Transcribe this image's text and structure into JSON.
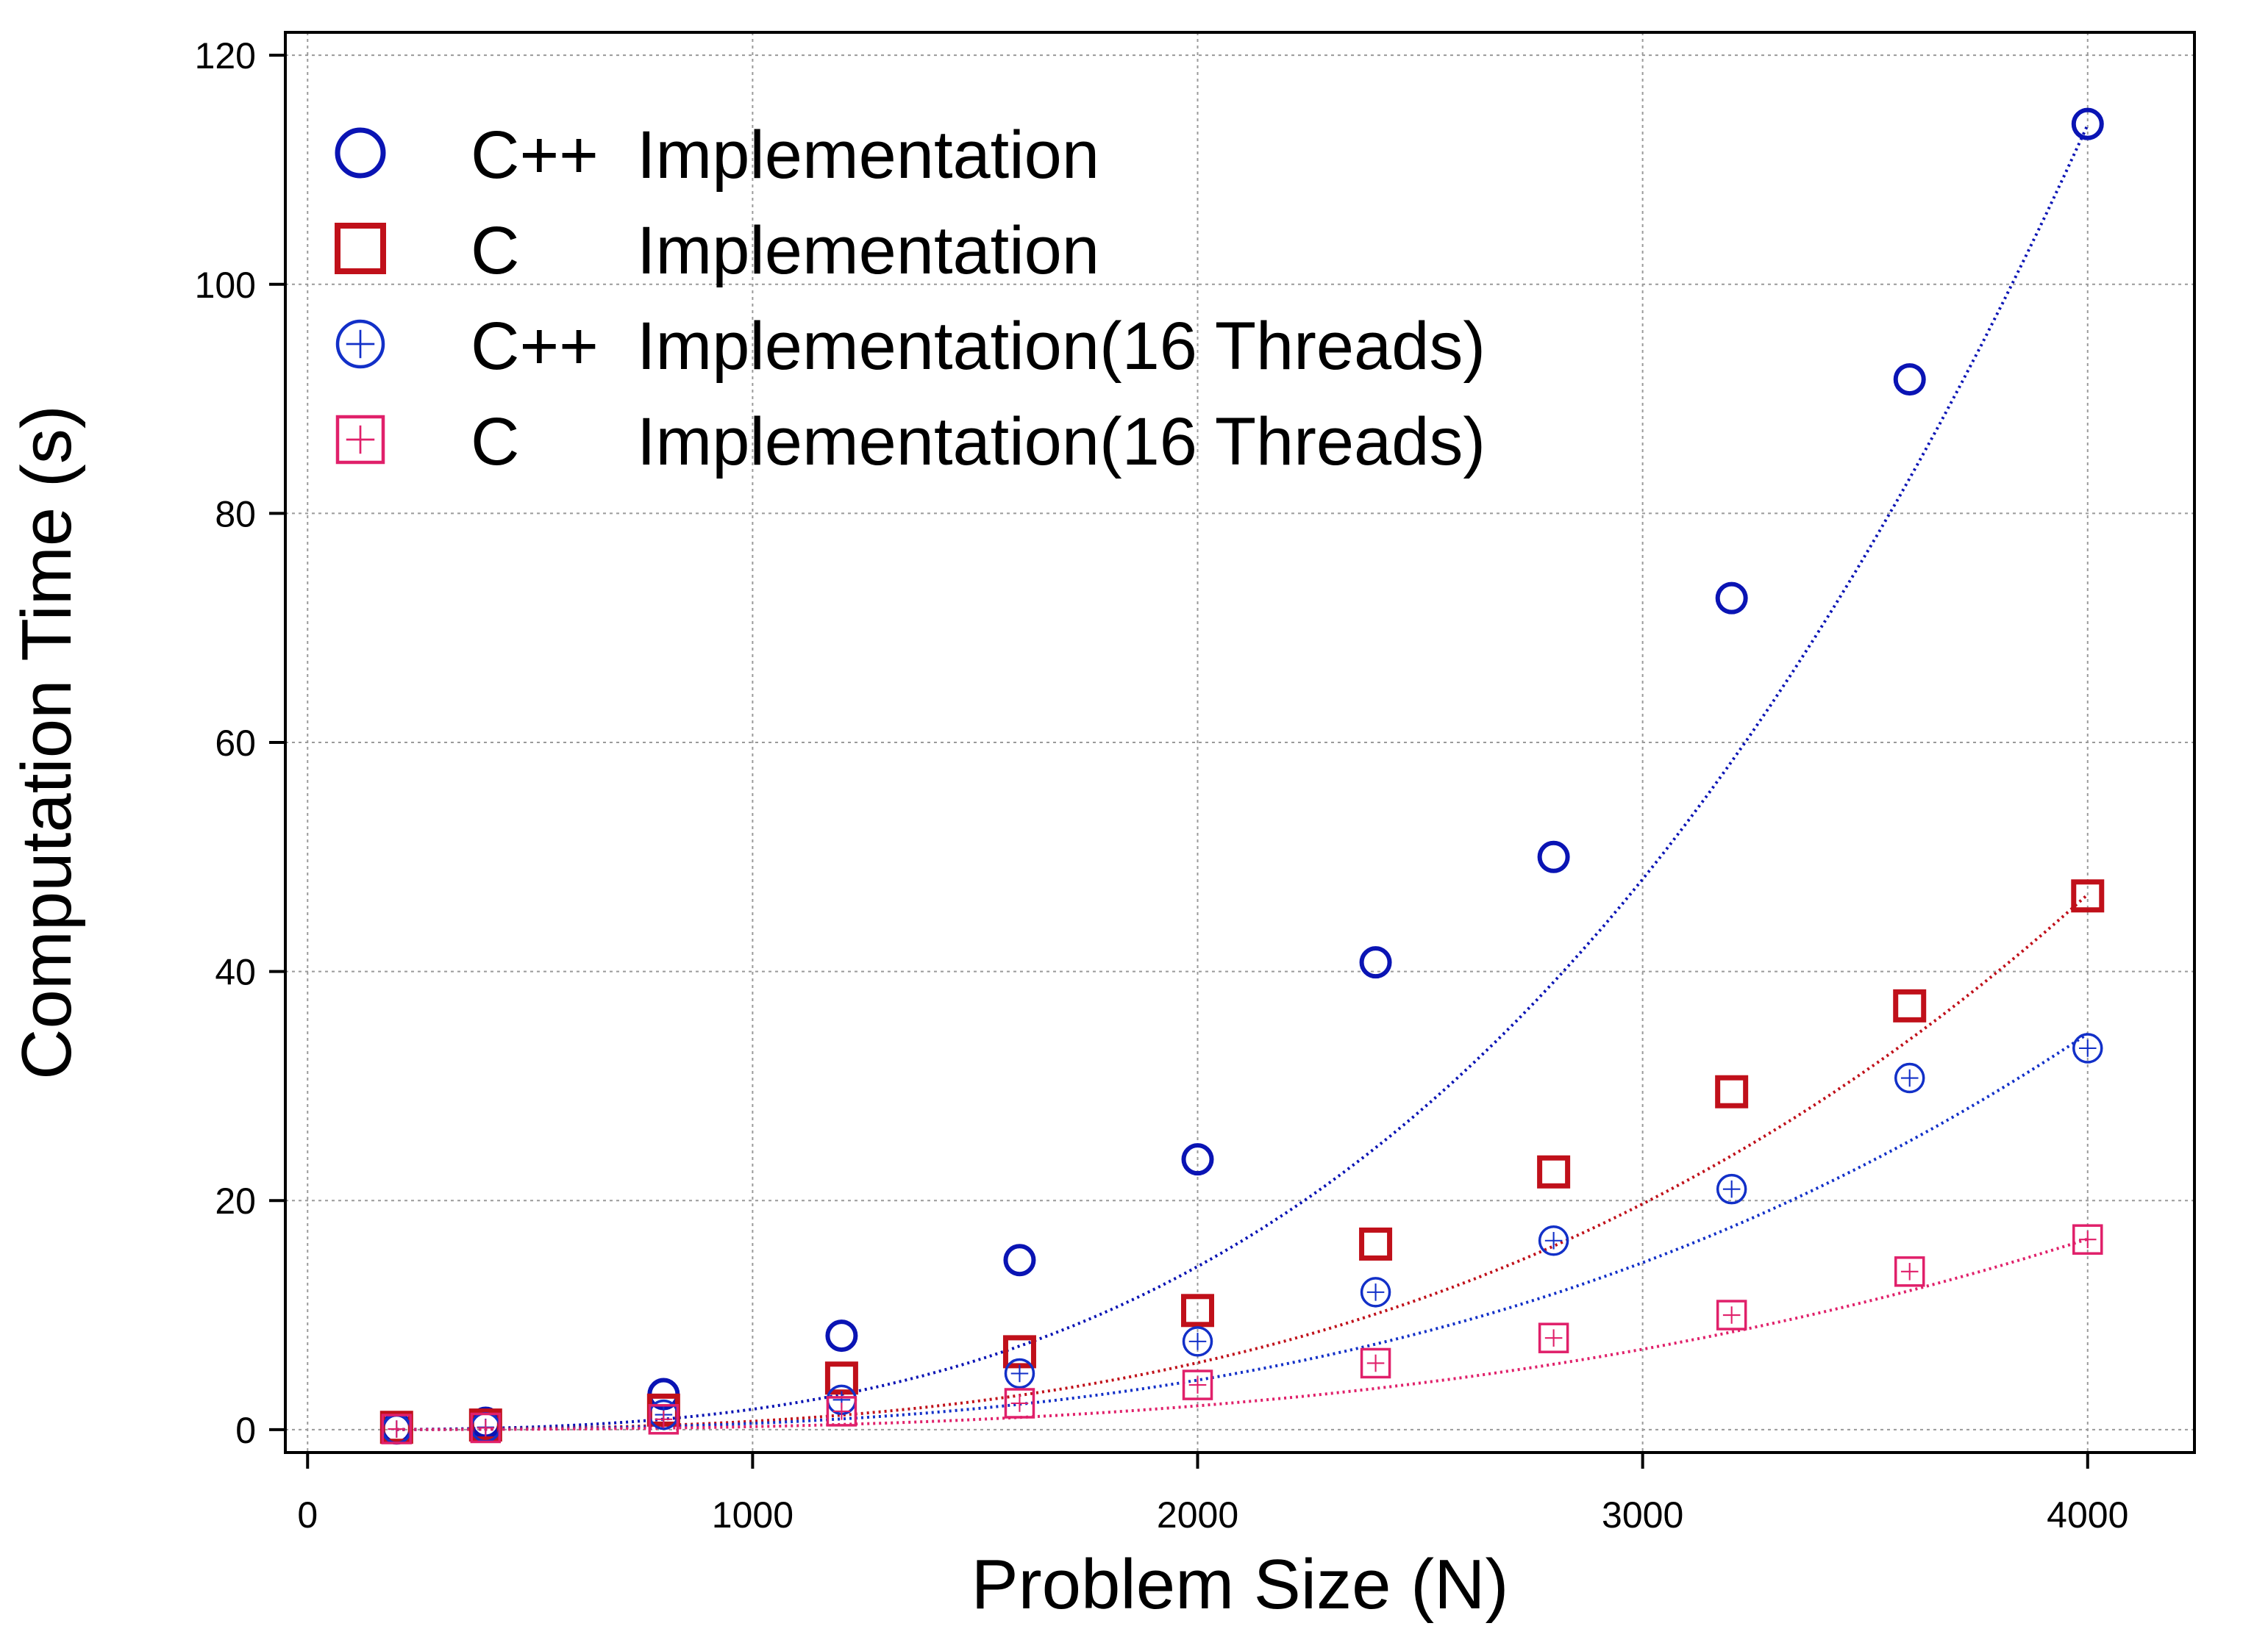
{
  "chart_data": {
    "type": "scatter",
    "title": "",
    "xlabel": "Problem Size (N)",
    "ylabel": "Computation Time (s)",
    "xlim": [
      -50,
      4240
    ],
    "ylim": [
      -2,
      122
    ],
    "xticks": [
      0,
      1000,
      2000,
      3000,
      4000
    ],
    "yticks": [
      0,
      20,
      40,
      60,
      80,
      100,
      120
    ],
    "grid": true,
    "legend_position": "top-left",
    "x": [
      200,
      400,
      800,
      1200,
      1600,
      2000,
      2400,
      2800,
      3200,
      3600,
      4000
    ],
    "series": [
      {
        "name": "C++ Implementation",
        "legend_lang": "C++",
        "legend_rest": "Implementation",
        "marker": "circle",
        "color": "#0a14b4",
        "values": [
          0.1,
          0.6,
          3.1,
          8.2,
          14.8,
          23.6,
          40.8,
          50.0,
          72.6,
          91.7,
          114.0
        ],
        "fit_coef": 1.78e-09
      },
      {
        "name": "C Implementation",
        "legend_lang": "C",
        "legend_rest": "Implementation",
        "marker": "square",
        "color": "#c0101a",
        "values": [
          0.2,
          0.4,
          1.7,
          4.5,
          6.8,
          10.4,
          16.2,
          22.5,
          29.5,
          37.0,
          46.6
        ],
        "fit_coef": 7.3e-10
      },
      {
        "name": "C++ Implementation(16 Threads)",
        "legend_lang": "C++",
        "legend_rest": "Implementation(16 Threads)",
        "marker": "circle-plus",
        "color": "#1230c8",
        "values": [
          0.05,
          0.2,
          1.3,
          2.6,
          4.9,
          7.7,
          12.0,
          16.5,
          21.0,
          30.7,
          33.3
        ],
        "fit_coef": 5.4e-10
      },
      {
        "name": "C Implementation(16 Threads)",
        "legend_lang": "C",
        "legend_rest": "Implementation(16 Threads)",
        "marker": "square-plus",
        "color": "#e0206a",
        "values": [
          0.05,
          0.15,
          0.9,
          1.6,
          2.3,
          3.9,
          5.8,
          8.0,
          10.0,
          13.8,
          16.6
        ],
        "fit_coef": 2.6e-10
      }
    ]
  }
}
